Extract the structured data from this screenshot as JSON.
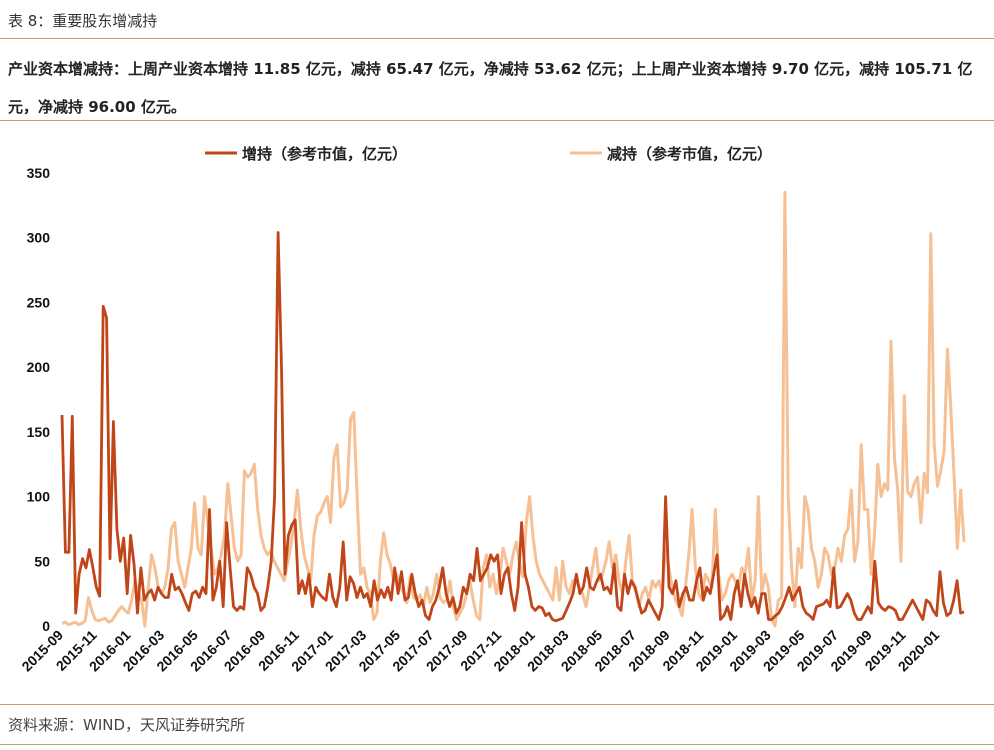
{
  "header": {
    "caption": "表 8：重要股东增减持",
    "summary": "产业资本增减持：上周产业资本增持 11.85 亿元，减持 65.47 亿元，净减持 53.62 亿元；上上周产业资本增持 9.70 亿元，减持 105.71 亿元，净减持 96.00 亿元。"
  },
  "footer": {
    "source": "资料来源：WIND，天风证券研究所"
  },
  "colors": {
    "increase": "#c0461a",
    "decrease": "#f6c095",
    "rule": "#c9a063"
  },
  "chart_data": {
    "type": "line",
    "title": "",
    "xlabel": "",
    "ylabel": "",
    "ylim": [
      0,
      350
    ],
    "yticks": [
      "0",
      "50",
      "100",
      "150",
      "200",
      "250",
      "300",
      "350"
    ],
    "xticks": [
      "2015-09",
      "2015-11",
      "2016-01",
      "2016-03",
      "2016-05",
      "2016-07",
      "2016-09",
      "2016-11",
      "2017-01",
      "2017-03",
      "2017-05",
      "2017-07",
      "2017-09",
      "2017-11",
      "2018-01",
      "2018-03",
      "2018-05",
      "2018-07",
      "2018-09",
      "2018-11",
      "2019-01",
      "2019-03",
      "2019-05",
      "2019-07",
      "2019-09",
      "2019-11",
      "2020-01"
    ],
    "grid": false,
    "legend": "top",
    "series": [
      {
        "name": "增持（参考市值，亿元）",
        "values": [
          163,
          57,
          57,
          162,
          10,
          40,
          52,
          45,
          59,
          45,
          30,
          23,
          247,
          238,
          52,
          158,
          75,
          50,
          68,
          25,
          70,
          48,
          10,
          45,
          20,
          25,
          28,
          20,
          30,
          25,
          22,
          22,
          40,
          28,
          30,
          25,
          18,
          12,
          25,
          27,
          22,
          30,
          25,
          90,
          20,
          30,
          50,
          15,
          80,
          45,
          15,
          12,
          15,
          13,
          45,
          40,
          30,
          25,
          12,
          15,
          30,
          50,
          100,
          304,
          200,
          40,
          70,
          78,
          82,
          25,
          35,
          25,
          40,
          15,
          30,
          25,
          22,
          20,
          40,
          22,
          15,
          30,
          65,
          20,
          38,
          33,
          22,
          30,
          22,
          25,
          15,
          35,
          20,
          28,
          22,
          30,
          20,
          45,
          25,
          42,
          20,
          22,
          40,
          25,
          15,
          20,
          8,
          5,
          15,
          20,
          30,
          45,
          25,
          15,
          22,
          10,
          15,
          30,
          25,
          40,
          35,
          60,
          35,
          40,
          45,
          55,
          50,
          55,
          25,
          40,
          45,
          25,
          12,
          30,
          80,
          40,
          30,
          15,
          12,
          15,
          14,
          8,
          10,
          5,
          4,
          5,
          6,
          12,
          18,
          25,
          40,
          25,
          30,
          45,
          30,
          28,
          35,
          40,
          28,
          30,
          25,
          48,
          15,
          12,
          40,
          25,
          35,
          30,
          20,
          10,
          12,
          20,
          15,
          10,
          5,
          15,
          100,
          30,
          25,
          35,
          15,
          25,
          30,
          20,
          20,
          35,
          45,
          20,
          30,
          25,
          40,
          55,
          5,
          8,
          15,
          5,
          25,
          35,
          15,
          40,
          25,
          15,
          22,
          10,
          25,
          25,
          5,
          5,
          8,
          10,
          15,
          22,
          30,
          20,
          25,
          30,
          15,
          10,
          8,
          5,
          15,
          16,
          17,
          20,
          15,
          45,
          14,
          15,
          20,
          25,
          20,
          10,
          5,
          5,
          10,
          15,
          10,
          50,
          18,
          14,
          12,
          15,
          14,
          12,
          5,
          5,
          10,
          15,
          20,
          15,
          10,
          5,
          20,
          18,
          12,
          8,
          42,
          18,
          8,
          10,
          20,
          35,
          10,
          11
        ]
      },
      {
        "name": "减持（参考市值，亿元）",
        "values": [
          2,
          3,
          1,
          2,
          3,
          1,
          2,
          4,
          22,
          12,
          5,
          4,
          5,
          6,
          3,
          4,
          8,
          12,
          15,
          12,
          10,
          20,
          35,
          25,
          20,
          0,
          30,
          55,
          45,
          30,
          25,
          30,
          45,
          75,
          80,
          50,
          40,
          30,
          45,
          60,
          95,
          60,
          55,
          100,
          80,
          60,
          40,
          45,
          55,
          70,
          110,
          85,
          60,
          50,
          55,
          120,
          115,
          118,
          125,
          90,
          70,
          60,
          55,
          58,
          50,
          45,
          40,
          35,
          48,
          62,
          80,
          105,
          75,
          55,
          45,
          35,
          70,
          85,
          88,
          95,
          100,
          80,
          130,
          140,
          92,
          95,
          105,
          160,
          165,
          100,
          40,
          45,
          30,
          25,
          5,
          10,
          50,
          72,
          55,
          48,
          35,
          40,
          30,
          25,
          18,
          38,
          22,
          20,
          24,
          15,
          30,
          18,
          25,
          40,
          22,
          18,
          20,
          35,
          15,
          5,
          10,
          15,
          25,
          35,
          20,
          8,
          5,
          45,
          55,
          30,
          40,
          25,
          38,
          60,
          50,
          40,
          55,
          65,
          48,
          38,
          80,
          100,
          70,
          50,
          40,
          35,
          30,
          25,
          20,
          45,
          20,
          50,
          30,
          25,
          35,
          35,
          30,
          25,
          15,
          30,
          45,
          60,
          35,
          40,
          50,
          65,
          45,
          55,
          35,
          25,
          50,
          70,
          35,
          30,
          15,
          25,
          30,
          20,
          35,
          30,
          35,
          25,
          60,
          45,
          30,
          20,
          15,
          8,
          30,
          55,
          90,
          45,
          25,
          20,
          40,
          35,
          30,
          90,
          40,
          20,
          25,
          35,
          40,
          35,
          30,
          45,
          40,
          60,
          20,
          35,
          100,
          25,
          40,
          30,
          5,
          0,
          20,
          22,
          335,
          100,
          45,
          15,
          60,
          45,
          100,
          90,
          60,
          50,
          30,
          40,
          60,
          55,
          40,
          45,
          60,
          50,
          70,
          75,
          105,
          50,
          65,
          140,
          90,
          90,
          40,
          70,
          125,
          100,
          110,
          105,
          220,
          130,
          105,
          50,
          178,
          104,
          100,
          110,
          115,
          80,
          118,
          103,
          303,
          140,
          108,
          120,
          135,
          214,
          170,
          115,
          60,
          105,
          65
        ]
      }
    ]
  }
}
